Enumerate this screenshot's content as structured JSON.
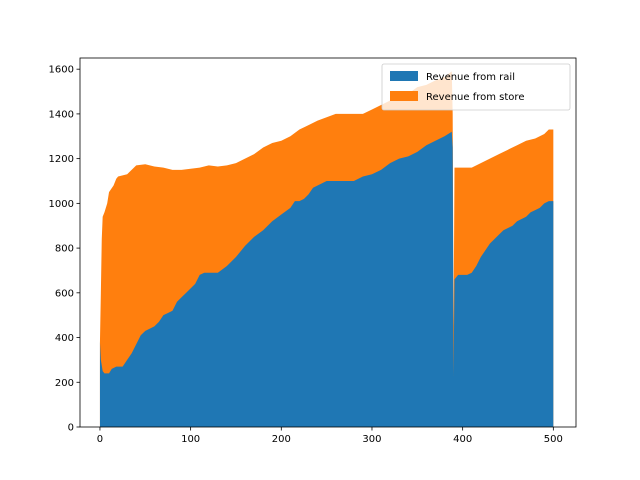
{
  "chart_data": {
    "type": "area",
    "stacked": true,
    "title": "",
    "xlabel": "",
    "ylabel": "",
    "xlim": [
      -22,
      525
    ],
    "ylim": [
      0,
      1650
    ],
    "xticks": [
      0,
      100,
      200,
      300,
      400,
      500
    ],
    "yticks": [
      0,
      200,
      400,
      600,
      800,
      1000,
      1200,
      1400,
      1600
    ],
    "grid": false,
    "legend": {
      "placement": "top-right"
    },
    "series": [
      {
        "name": "Revenue from rail",
        "color": "#1f77b4",
        "points": [
          [
            0,
            380
          ],
          [
            1,
            300
          ],
          [
            3,
            250
          ],
          [
            5,
            240
          ],
          [
            10,
            240
          ],
          [
            13,
            260
          ],
          [
            18,
            270
          ],
          [
            25,
            270
          ],
          [
            30,
            300
          ],
          [
            35,
            330
          ],
          [
            40,
            370
          ],
          [
            45,
            410
          ],
          [
            50,
            430
          ],
          [
            55,
            440
          ],
          [
            60,
            450
          ],
          [
            65,
            470
          ],
          [
            70,
            500
          ],
          [
            75,
            510
          ],
          [
            80,
            520
          ],
          [
            85,
            560
          ],
          [
            90,
            580
          ],
          [
            95,
            600
          ],
          [
            100,
            620
          ],
          [
            105,
            640
          ],
          [
            110,
            680
          ],
          [
            115,
            690
          ],
          [
            120,
            690
          ],
          [
            130,
            690
          ],
          [
            140,
            720
          ],
          [
            150,
            760
          ],
          [
            160,
            810
          ],
          [
            170,
            850
          ],
          [
            180,
            880
          ],
          [
            190,
            920
          ],
          [
            200,
            950
          ],
          [
            210,
            980
          ],
          [
            215,
            1010
          ],
          [
            220,
            1010
          ],
          [
            225,
            1020
          ],
          [
            230,
            1040
          ],
          [
            235,
            1070
          ],
          [
            240,
            1080
          ],
          [
            245,
            1090
          ],
          [
            250,
            1100
          ],
          [
            260,
            1100
          ],
          [
            270,
            1100
          ],
          [
            280,
            1100
          ],
          [
            290,
            1120
          ],
          [
            300,
            1130
          ],
          [
            310,
            1150
          ],
          [
            320,
            1180
          ],
          [
            330,
            1200
          ],
          [
            340,
            1210
          ],
          [
            350,
            1230
          ],
          [
            360,
            1260
          ],
          [
            370,
            1280
          ],
          [
            380,
            1300
          ],
          [
            388,
            1320
          ],
          [
            389,
            1250
          ],
          [
            390,
            230
          ],
          [
            391,
            660
          ],
          [
            395,
            680
          ],
          [
            400,
            680
          ],
          [
            405,
            680
          ],
          [
            410,
            690
          ],
          [
            415,
            720
          ],
          [
            420,
            760
          ],
          [
            425,
            790
          ],
          [
            430,
            820
          ],
          [
            435,
            840
          ],
          [
            440,
            860
          ],
          [
            445,
            880
          ],
          [
            450,
            890
          ],
          [
            455,
            900
          ],
          [
            460,
            920
          ],
          [
            465,
            930
          ],
          [
            470,
            940
          ],
          [
            475,
            960
          ],
          [
            480,
            970
          ],
          [
            485,
            980
          ],
          [
            490,
            1000
          ],
          [
            495,
            1010
          ],
          [
            500,
            1010
          ]
        ]
      },
      {
        "name": "Revenue from store",
        "color": "#ff7f0e",
        "points": [
          [
            0,
            380
          ],
          [
            1,
            600
          ],
          [
            2,
            840
          ],
          [
            3,
            940
          ],
          [
            5,
            960
          ],
          [
            8,
            1000
          ],
          [
            10,
            1050
          ],
          [
            15,
            1080
          ],
          [
            18,
            1110
          ],
          [
            20,
            1120
          ],
          [
            30,
            1130
          ],
          [
            40,
            1170
          ],
          [
            50,
            1175
          ],
          [
            60,
            1165
          ],
          [
            70,
            1160
          ],
          [
            80,
            1150
          ],
          [
            90,
            1150
          ],
          [
            100,
            1155
          ],
          [
            110,
            1160
          ],
          [
            120,
            1170
          ],
          [
            130,
            1165
          ],
          [
            140,
            1170
          ],
          [
            150,
            1180
          ],
          [
            160,
            1200
          ],
          [
            170,
            1220
          ],
          [
            180,
            1250
          ],
          [
            190,
            1270
          ],
          [
            200,
            1280
          ],
          [
            210,
            1300
          ],
          [
            220,
            1330
          ],
          [
            230,
            1350
          ],
          [
            240,
            1370
          ],
          [
            250,
            1385
          ],
          [
            260,
            1400
          ],
          [
            270,
            1400
          ],
          [
            280,
            1400
          ],
          [
            290,
            1400
          ],
          [
            300,
            1420
          ],
          [
            310,
            1440
          ],
          [
            320,
            1460
          ],
          [
            330,
            1470
          ],
          [
            340,
            1490
          ],
          [
            350,
            1520
          ],
          [
            360,
            1530
          ],
          [
            370,
            1550
          ],
          [
            380,
            1565
          ],
          [
            388,
            1590
          ],
          [
            389,
            1400
          ],
          [
            390,
            450
          ],
          [
            391,
            1160
          ],
          [
            400,
            1160
          ],
          [
            410,
            1160
          ],
          [
            420,
            1180
          ],
          [
            430,
            1200
          ],
          [
            440,
            1220
          ],
          [
            450,
            1240
          ],
          [
            460,
            1260
          ],
          [
            470,
            1280
          ],
          [
            480,
            1290
          ],
          [
            490,
            1310
          ],
          [
            495,
            1330
          ],
          [
            500,
            1330
          ]
        ]
      }
    ]
  }
}
